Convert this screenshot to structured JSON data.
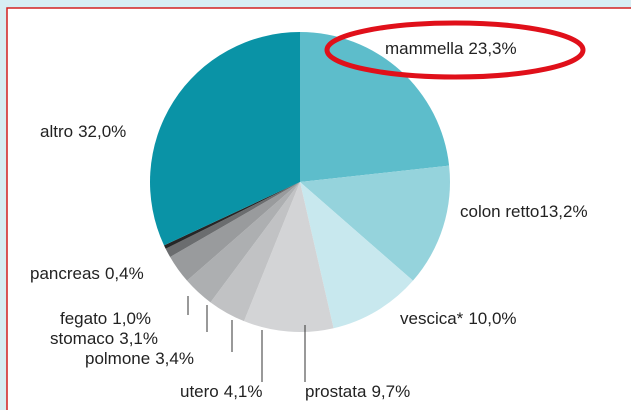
{
  "chart_data": {
    "type": "pie",
    "categories": [
      "mammella",
      "colon retto",
      "vescica*",
      "prostata",
      "utero",
      "polmone",
      "stomaco",
      "fegato",
      "pancreas",
      "altro"
    ],
    "values": [
      23.3,
      13.2,
      10.0,
      9.7,
      4.1,
      3.4,
      3.1,
      1.0,
      0.4,
      32.0
    ],
    "value_labels": [
      "23,3%",
      "13,2%",
      "10,0%",
      "9,7%",
      "4,1%",
      "3,4%",
      "3,1%",
      "1,0%",
      "0,4%",
      "32,0%"
    ],
    "colors": [
      "#5dbdcb",
      "#95d3dc",
      "#c8e8ee",
      "#d3d4d6",
      "#c1c2c4",
      "#adafb1",
      "#999b9d",
      "#6b6d6f",
      "#262626",
      "#0a93a6"
    ]
  }
}
